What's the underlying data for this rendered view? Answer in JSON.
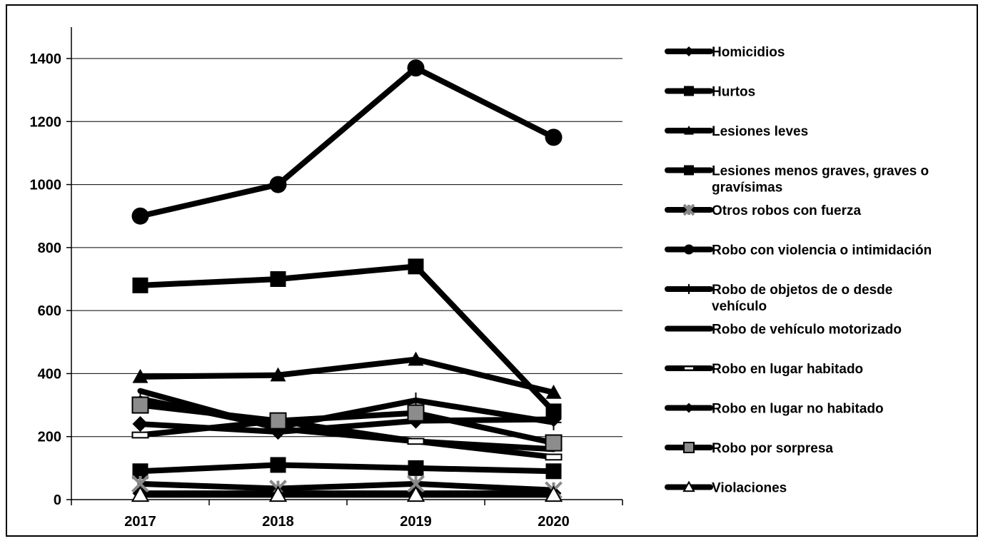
{
  "chart_data": {
    "type": "line",
    "title": "",
    "xlabel": "",
    "ylabel": "",
    "categories": [
      "2017",
      "2018",
      "2019",
      "2020"
    ],
    "ylim": [
      0,
      1500
    ],
    "yticks": [
      "0",
      "200",
      "400",
      "600",
      "800",
      "1000",
      "1200",
      "1400"
    ],
    "grid": "horizontal",
    "legend_position": "right",
    "line_color": "#000000",
    "series": [
      {
        "name": "Homicidios",
        "marker": "diamond",
        "values": [
          20,
          20,
          20,
          20
        ]
      },
      {
        "name": "Hurtos",
        "marker": "square",
        "values": [
          680,
          700,
          740,
          280
        ]
      },
      {
        "name": "Lesiones leves",
        "marker": "triangle",
        "values": [
          390,
          395,
          445,
          340
        ]
      },
      {
        "name": "Lesiones menos graves, graves o gravísimas",
        "marker": "square",
        "values": [
          90,
          110,
          100,
          90
        ]
      },
      {
        "name": "Otros robos con fuerza",
        "marker": "xstar",
        "values": [
          50,
          35,
          50,
          30
        ]
      },
      {
        "name": "Robo con violencia o intimidación",
        "marker": "circle",
        "values": [
          900,
          1000,
          1370,
          1150
        ]
      },
      {
        "name": "Robo de objetos de o desde vehículo",
        "marker": "plus",
        "values": [
          320,
          230,
          315,
          245
        ]
      },
      {
        "name": "Robo de vehículo motorizado",
        "marker": "none",
        "values": [
          345,
          225,
          185,
          160
        ]
      },
      {
        "name": "Robo en lugar habitado",
        "marker": "dash",
        "values": [
          205,
          250,
          185,
          135
        ]
      },
      {
        "name": "Robo en lugar no habitado",
        "marker": "diamond",
        "values": [
          240,
          215,
          250,
          255
        ]
      },
      {
        "name": "Robo por sorpresa",
        "marker": "grayS",
        "values": [
          300,
          250,
          275,
          180
        ]
      },
      {
        "name": "Violaciones",
        "marker": "wtriangle",
        "values": [
          15,
          15,
          15,
          15
        ]
      }
    ]
  }
}
